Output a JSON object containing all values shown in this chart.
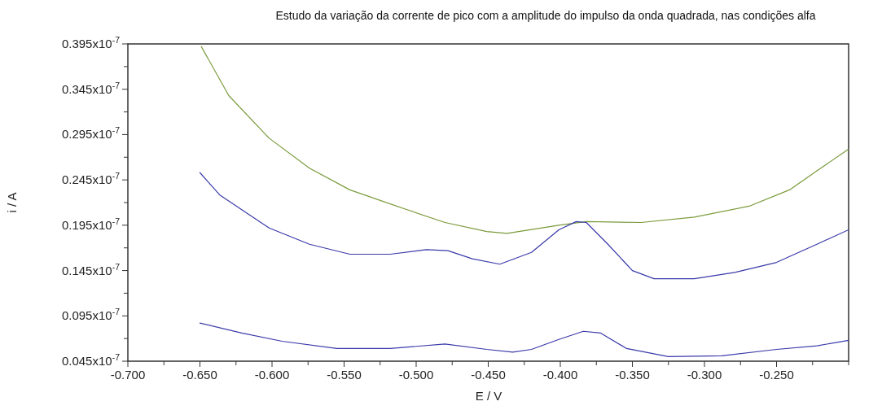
{
  "chart_data": {
    "type": "line",
    "title": "Estudo da variação da corrente de pico com a amplitude do impulso da onda quadrada, nas condições alfa",
    "xlabel": "E / V",
    "ylabel": "i / A",
    "xlim": [
      -0.7,
      -0.2
    ],
    "ylim": [
      4.5e-09,
      3.95e-08
    ],
    "xticks": [
      {
        "value": -0.7,
        "label": "-0.700"
      },
      {
        "value": -0.675,
        "label": null
      },
      {
        "value": -0.65,
        "label": "-0.650"
      },
      {
        "value": -0.625,
        "label": null
      },
      {
        "value": -0.6,
        "label": "-0.600"
      },
      {
        "value": -0.575,
        "label": null
      },
      {
        "value": -0.55,
        "label": "-0.550"
      },
      {
        "value": -0.525,
        "label": null
      },
      {
        "value": -0.5,
        "label": "-0.500"
      },
      {
        "value": -0.475,
        "label": null
      },
      {
        "value": -0.45,
        "label": "-0.450"
      },
      {
        "value": -0.425,
        "label": null
      },
      {
        "value": -0.4,
        "label": "-0.400"
      },
      {
        "value": -0.375,
        "label": null
      },
      {
        "value": -0.35,
        "label": "-0.350"
      },
      {
        "value": -0.325,
        "label": null
      },
      {
        "value": -0.3,
        "label": "-0.300"
      },
      {
        "value": -0.275,
        "label": null
      },
      {
        "value": -0.25,
        "label": "-0.250"
      },
      {
        "value": -0.225,
        "label": null
      },
      {
        "value": -0.2,
        "label": null
      }
    ],
    "yticks": [
      {
        "value": 4.5e-09,
        "label": "0.045x10$^{-7}$"
      },
      {
        "value": 7e-09,
        "label": null
      },
      {
        "value": 9.5e-09,
        "label": "0.095x10$^{-7}$"
      },
      {
        "value": 1.2e-08,
        "label": null
      },
      {
        "value": 1.45e-08,
        "label": "0.145x10$^{-7}$"
      },
      {
        "value": 1.7e-08,
        "label": null
      },
      {
        "value": 1.95e-08,
        "label": "0.195x10$^{-7}$"
      },
      {
        "value": 2.2e-08,
        "label": null
      },
      {
        "value": 2.45e-08,
        "label": "0.245x10$^{-7}$"
      },
      {
        "value": 2.7e-08,
        "label": null
      },
      {
        "value": 2.95e-08,
        "label": "0.295x10$^{-7}$"
      },
      {
        "value": 3.2e-08,
        "label": null
      },
      {
        "value": 3.45e-08,
        "label": "0.345x10$^{-7}$"
      },
      {
        "value": 3.7e-08,
        "label": null
      },
      {
        "value": 3.95e-08,
        "label": "0.395x10$^{-7}$"
      }
    ],
    "grid": false,
    "marker": "none",
    "line_style": "solid",
    "series": [
      {
        "color": "#7a9a3a",
        "x": [
          -0.649,
          -0.63,
          -0.602,
          -0.574,
          -0.546,
          -0.508,
          -0.48,
          -0.451,
          -0.437,
          -0.401,
          -0.382,
          -0.344,
          -0.307,
          -0.269,
          -0.241,
          -0.222,
          -0.2
        ],
        "values": [
          3.92e-08,
          3.38e-08,
          2.91e-08,
          2.58e-08,
          2.34e-08,
          2.13e-08,
          1.98e-08,
          1.88e-08,
          1.86e-08,
          1.95e-08,
          1.99e-08,
          1.98e-08,
          2.04e-08,
          2.16e-08,
          2.34e-08,
          2.55e-08,
          2.79e-08
        ]
      },
      {
        "color": "#3a3aaa",
        "x": [
          -0.65,
          -0.636,
          -0.602,
          -0.574,
          -0.546,
          -0.518,
          -0.493,
          -0.478,
          -0.461,
          -0.442,
          -0.42,
          -0.401,
          -0.389,
          -0.382,
          -0.367,
          -0.35,
          -0.335,
          -0.307,
          -0.279,
          -0.25,
          -0.222,
          -0.2
        ],
        "values": [
          2.53e-08,
          2.28e-08,
          1.92e-08,
          1.74e-08,
          1.63e-08,
          1.63e-08,
          1.68e-08,
          1.67e-08,
          1.58e-08,
          1.52e-08,
          1.65e-08,
          1.9e-08,
          1.99e-08,
          1.98e-08,
          1.74e-08,
          1.45e-08,
          1.36e-08,
          1.36e-08,
          1.43e-08,
          1.54e-08,
          1.74e-08,
          1.9e-08
        ]
      },
      {
        "color": "#3a3aaa",
        "x": [
          -0.65,
          -0.621,
          -0.593,
          -0.555,
          -0.518,
          -0.48,
          -0.451,
          -0.433,
          -0.42,
          -0.401,
          -0.384,
          -0.372,
          -0.354,
          -0.325,
          -0.288,
          -0.25,
          -0.222,
          -0.2
        ],
        "values": [
          8.7e-09,
          7.6e-09,
          6.7e-09,
          5.9e-09,
          5.9e-09,
          6.4e-09,
          5.8e-09,
          5.5e-09,
          5.8e-09,
          6.9e-09,
          7.8e-09,
          7.6e-09,
          5.9e-09,
          5e-09,
          5.1e-09,
          5.8e-09,
          6.2e-09,
          6.8e-09
        ]
      }
    ]
  }
}
